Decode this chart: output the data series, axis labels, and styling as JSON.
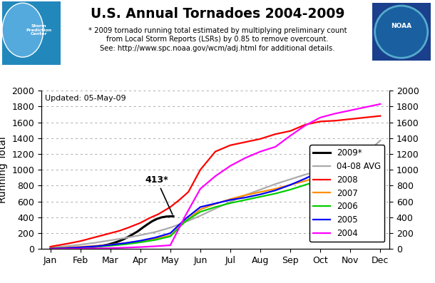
{
  "title": "U.S. Annual Tornadoes 2004-2009",
  "subtitle_line1": "* 2009 tornado running total estimated by multiplying preliminary count",
  "subtitle_line2": "from Local Storm Reports (LSRs) by 0.85 to remove overcount.",
  "subtitle_line3": "See: http://www.spc.noaa.gov/wcm/adj.html for additional details.",
  "updated_text": "Updated: 05-May-09",
  "ylabel": "Running Total",
  "ylim": [
    0,
    2000
  ],
  "yticks": [
    0,
    200,
    400,
    600,
    800,
    1000,
    1200,
    1400,
    1600,
    1800,
    2000
  ],
  "months": [
    "Jan",
    "Feb",
    "Mar",
    "Apr",
    "May",
    "Jun",
    "Jul",
    "Aug",
    "Sep",
    "Oct",
    "Nov",
    "Dec"
  ],
  "annotation_text": "413*",
  "background_color": "#ffffff",
  "grid_color": "#aaaaaa",
  "series": {
    "2009*": {
      "color": "#000000",
      "linewidth": 2.2,
      "x": [
        0.0,
        0.16,
        0.32,
        0.48,
        0.65,
        0.81,
        0.97,
        1.13,
        1.29,
        1.45,
        1.61,
        1.77,
        1.94,
        2.1,
        2.26,
        2.42,
        2.58,
        2.74,
        2.9,
        3.06,
        3.23,
        3.39,
        3.55,
        3.71,
        3.87,
        4.03,
        4.1
      ],
      "y": [
        0,
        2,
        4,
        6,
        8,
        10,
        14,
        18,
        22,
        28,
        35,
        45,
        58,
        75,
        95,
        120,
        150,
        185,
        220,
        265,
        310,
        350,
        380,
        400,
        410,
        413,
        413
      ]
    },
    "04-08 AVG": {
      "color": "#aaaaaa",
      "linewidth": 1.6,
      "x": [
        0,
        0.5,
        1,
        1.5,
        2,
        2.5,
        3,
        3.5,
        4,
        4.5,
        5,
        5.5,
        6,
        6.5,
        7,
        7.5,
        8,
        8.5,
        9,
        9.5,
        10,
        10.5,
        11
      ],
      "y": [
        20,
        35,
        55,
        80,
        110,
        140,
        175,
        215,
        270,
        340,
        420,
        510,
        595,
        680,
        750,
        820,
        880,
        940,
        990,
        1040,
        1090,
        1200,
        1370
      ]
    },
    "2008": {
      "color": "#ff0000",
      "linewidth": 1.6,
      "x": [
        0,
        0.3,
        0.6,
        1,
        1.3,
        1.6,
        2,
        2.3,
        2.6,
        3,
        3.3,
        3.6,
        4,
        4.3,
        4.6,
        5,
        5.5,
        6,
        6.5,
        7,
        7.5,
        8,
        8.5,
        9,
        9.5,
        10,
        10.5,
        11
      ],
      "y": [
        30,
        50,
        70,
        100,
        130,
        160,
        200,
        230,
        270,
        330,
        390,
        440,
        530,
        620,
        720,
        1000,
        1230,
        1310,
        1350,
        1390,
        1450,
        1490,
        1570,
        1610,
        1620,
        1640,
        1660,
        1680
      ]
    },
    "2007": {
      "color": "#ff8c00",
      "linewidth": 1.6,
      "x": [
        0,
        0.5,
        1,
        1.5,
        2,
        2.5,
        3,
        3.5,
        4,
        4.5,
        5,
        5.5,
        6,
        6.5,
        7,
        7.5,
        8,
        8.5,
        9,
        9.5,
        10,
        10.5,
        11
      ],
      "y": [
        10,
        18,
        28,
        40,
        55,
        75,
        100,
        130,
        170,
        350,
        500,
        570,
        630,
        680,
        720,
        760,
        810,
        860,
        910,
        960,
        1010,
        1050,
        1080
      ]
    },
    "2006": {
      "color": "#00cc00",
      "linewidth": 1.6,
      "x": [
        0,
        0.5,
        1,
        1.5,
        2,
        2.5,
        3,
        3.5,
        4,
        4.5,
        5,
        5.5,
        6,
        6.5,
        7,
        7.5,
        8,
        8.5,
        9,
        9.5,
        10,
        10.5,
        11
      ],
      "y": [
        5,
        10,
        18,
        28,
        42,
        60,
        85,
        115,
        160,
        350,
        470,
        530,
        580,
        620,
        660,
        700,
        750,
        810,
        870,
        930,
        980,
        1030,
        1075
      ]
    },
    "2005": {
      "color": "#0000ff",
      "linewidth": 1.6,
      "x": [
        0,
        0.5,
        1,
        1.5,
        2,
        2.5,
        3,
        3.5,
        4,
        4.5,
        5,
        5.5,
        6,
        6.5,
        7,
        7.5,
        8,
        8.5,
        9,
        9.5,
        10,
        10.5,
        11
      ],
      "y": [
        5,
        12,
        22,
        35,
        52,
        75,
        105,
        145,
        200,
        380,
        530,
        575,
        620,
        650,
        690,
        740,
        810,
        890,
        980,
        1020,
        1060,
        1150,
        1255
      ]
    },
    "2004": {
      "color": "#ff00ff",
      "linewidth": 1.6,
      "x": [
        0,
        0.5,
        1,
        1.5,
        2,
        2.5,
        3,
        3.5,
        4,
        4.5,
        5,
        5.5,
        6,
        6.5,
        7,
        7.5,
        8,
        8.5,
        9,
        9.5,
        10,
        10.5,
        11
      ],
      "y": [
        0,
        2,
        5,
        8,
        12,
        18,
        25,
        35,
        48,
        420,
        760,
        920,
        1050,
        1150,
        1230,
        1290,
        1430,
        1560,
        1660,
        1710,
        1750,
        1790,
        1830
      ]
    }
  },
  "legend_order": [
    "2009*",
    "04-08 AVG",
    "2008",
    "2007",
    "2006",
    "2005",
    "2004"
  ]
}
